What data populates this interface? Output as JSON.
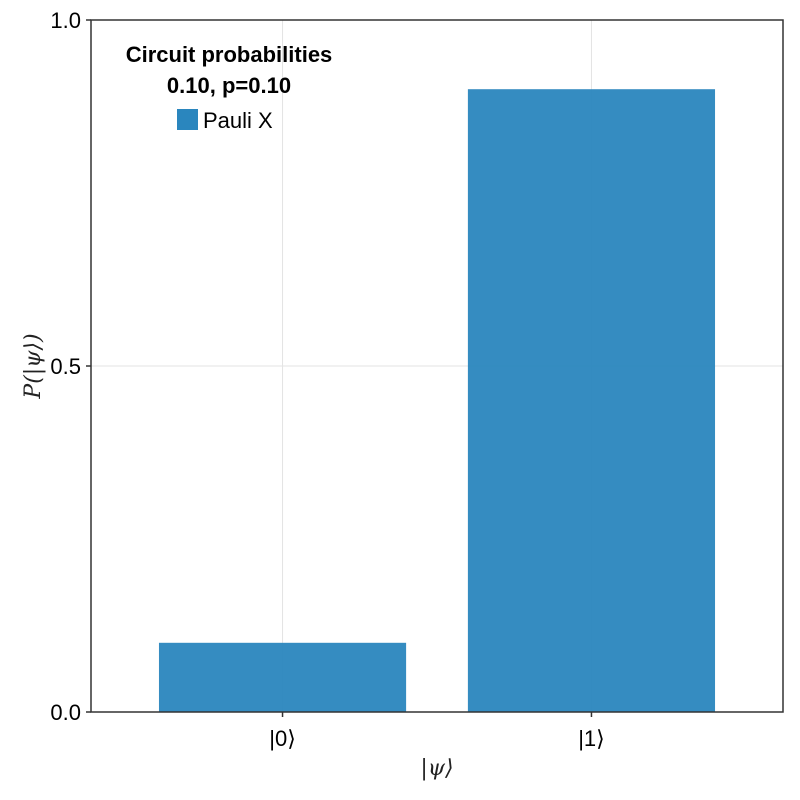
{
  "chart_data": {
    "type": "bar",
    "categories": [
      "|0⟩",
      "|1⟩"
    ],
    "series": [
      {
        "name": "Pauli X",
        "values": [
          0.1,
          0.9
        ],
        "color": "#2a86be"
      }
    ],
    "xlabel": "|ψ⟩",
    "ylabel": "P(|ψ⟩)",
    "ylim": [
      0,
      1
    ],
    "yticks": [
      "0.0",
      "0.5",
      "1.0"
    ],
    "grid": true,
    "legend": {
      "title_line1": "Circuit probabilities",
      "title_line2": "0.10, p=0.10",
      "placement": "top-left"
    }
  }
}
